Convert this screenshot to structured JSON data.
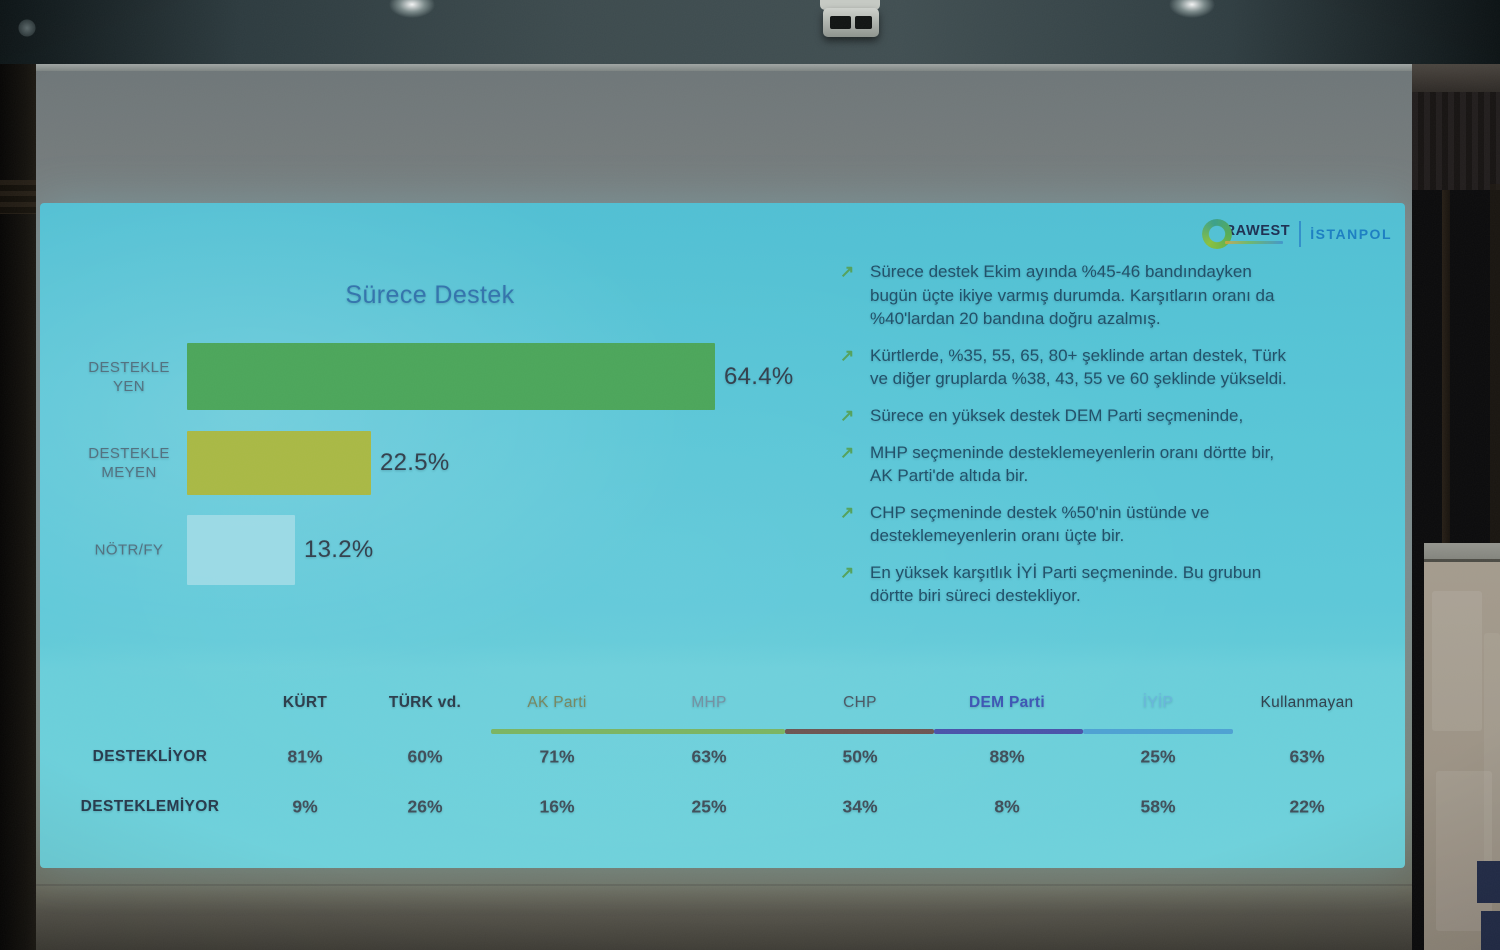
{
  "slide": {
    "logos": {
      "rawest": "RAWEST",
      "istanpol": "İSTANPOL"
    },
    "bullets": [
      {
        "icon": "trend-up-arrow",
        "lines": [
          "Sürece destek Ekim ayında %45-46 bandındayken",
          "bugün üçte ikiye varmış durumda. Karşıtların oranı da",
          "%40'lardan 20 bandına doğru azalmış."
        ]
      },
      {
        "icon": "trend-up-arrow",
        "lines": [
          "Kürtlerde, %35, 55, 65, 80+ şeklinde artan destek, Türk",
          "ve diğer gruplarda %38, 43, 55 ve 60 şeklinde yükseldi."
        ]
      },
      {
        "icon": "trend-up-arrow",
        "lines": [
          "Sürece en yüksek destek DEM Parti seçmeninde,"
        ]
      },
      {
        "icon": "trend-up-arrow",
        "lines": [
          "MHP seçmeninde desteklemeyenlerin oranı dörtte bir,",
          "AK Parti'de altıda bir."
        ]
      },
      {
        "icon": "trend-up-arrow",
        "lines": [
          "CHP seçmeninde destek %50'nin üstünde ve",
          "desteklemeyenlerin oranı üçte bir."
        ]
      },
      {
        "icon": "trend-up-arrow",
        "lines": [
          "En yüksek karşıtlık İYİ Parti seçmeninde. Bu grubun",
          "dörtte biri süreci destekliyor."
        ]
      }
    ],
    "colors": {
      "slide_background": "#59c6d9",
      "title_text": "#3273ad",
      "body_text": "#1f4f68",
      "bullet_arrow_green": "#53a25b"
    }
  },
  "chart_data": [
    {
      "type": "bar",
      "title": "Sürece Destek",
      "orientation": "horizontal",
      "categories": [
        "DESTEKLEYEN",
        "DESTEKLEMEYEN",
        "NÖTR/FY"
      ],
      "category_display_lines": [
        [
          "DESTEKLE",
          "YEN"
        ],
        [
          "DESTEKLE",
          "MEYEN"
        ],
        [
          "NÖTR/FY"
        ]
      ],
      "values": [
        64.4,
        22.5,
        13.2
      ],
      "value_labels": [
        "64.4%",
        "22.5%",
        "13.2%"
      ],
      "bar_colors": [
        "#4ba65a",
        "#a9b944",
        "#a8dee8"
      ],
      "xlabel": "",
      "ylabel": "",
      "xlim": [
        0,
        100
      ],
      "grid": false,
      "legend": false
    },
    {
      "type": "table",
      "columns": [
        {
          "label": "KÜRT",
          "color": "#2b3c4a",
          "bold": true
        },
        {
          "label": "TÜRK vd.",
          "color": "#2b3c4a",
          "bold": true
        },
        {
          "label": "AK Parti",
          "color": "#77875f",
          "bold": false
        },
        {
          "label": "MHP",
          "color": "#7391a2",
          "bold": false
        },
        {
          "label": "CHP",
          "color": "#4a5763",
          "bold": false
        },
        {
          "label": "DEM Parti",
          "color": "#3d55b5",
          "bold": true
        },
        {
          "label": "İYİP",
          "color": "#68b6dc",
          "bold": false
        },
        {
          "label": "Kullanmayan",
          "color": "#2e3f4c",
          "bold": false
        }
      ],
      "underline_segments": [
        {
          "span": [
            "AK Parti",
            "MHP"
          ],
          "color": "#7cb257"
        },
        {
          "span": [
            "CHP"
          ],
          "color": "#6d4a45"
        },
        {
          "span": [
            "DEM Parti"
          ],
          "color": "#4747a5"
        },
        {
          "span": [
            "İYİP"
          ],
          "color": "#4b9cd2"
        }
      ],
      "rows": [
        {
          "label": "DESTEKLİYOR",
          "values": [
            "81%",
            "60%",
            "71%",
            "63%",
            "50%",
            "88%",
            "25%",
            "63%"
          ]
        },
        {
          "label": "DESTEKLEMİYOR",
          "values": [
            "9%",
            "26%",
            "16%",
            "25%",
            "34%",
            "8%",
            "58%",
            "22%"
          ]
        }
      ]
    }
  ]
}
